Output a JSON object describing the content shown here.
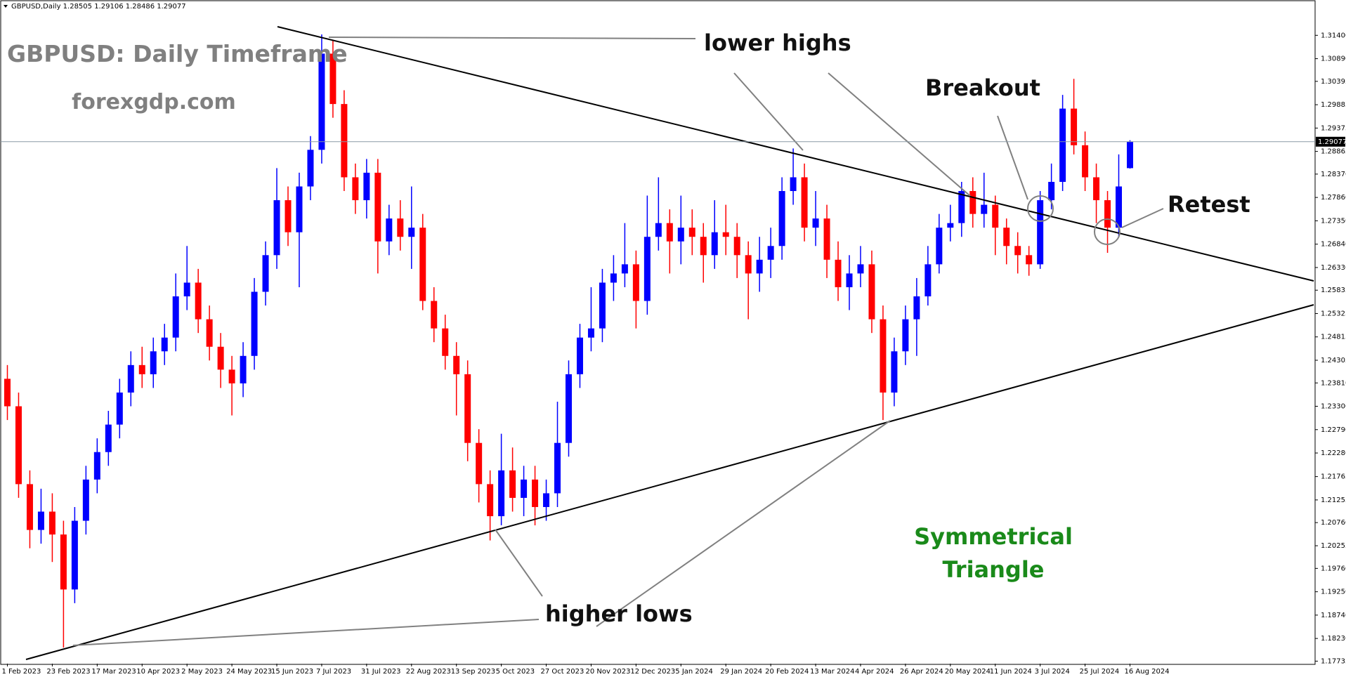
{
  "chart_data": {
    "type": "candlestick",
    "header": "GBPUSD,Daily  1.28505 1.29106 1.28486 1.29077",
    "title": "GBPUSD: Daily Timeframe",
    "subtitle": "forexgdp.com",
    "annotations": [
      "lower highs",
      "Breakout",
      "Retest",
      "higher lows",
      "Symmetrical",
      "Triangle"
    ],
    "up_color": "#0000ff",
    "down_color": "#ff0000",
    "ylim": [
      1.1768,
      1.3211
    ],
    "yticks": [
      {
        "value": 1.314,
        "label": "1.31400"
      },
      {
        "value": 1.3089,
        "label": "1.30890"
      },
      {
        "value": 1.30395,
        "label": "1.30395"
      },
      {
        "value": 1.29885,
        "label": "1.29885"
      },
      {
        "value": 1.29375,
        "label": "1.29375"
      },
      {
        "value": 1.28865,
        "label": "1.28865"
      },
      {
        "value": 1.2837,
        "label": "1.28370"
      },
      {
        "value": 1.2786,
        "label": "1.27860"
      },
      {
        "value": 1.2735,
        "label": "1.27350"
      },
      {
        "value": 1.2684,
        "label": "1.26840"
      },
      {
        "value": 1.2633,
        "label": "1.26330"
      },
      {
        "value": 1.25835,
        "label": "1.25835"
      },
      {
        "value": 1.25325,
        "label": "1.25325"
      },
      {
        "value": 1.24815,
        "label": "1.24815"
      },
      {
        "value": 1.24305,
        "label": "1.24305"
      },
      {
        "value": 1.2381,
        "label": "1.23810"
      },
      {
        "value": 1.233,
        "label": "1.23300"
      },
      {
        "value": 1.2279,
        "label": "1.22790"
      },
      {
        "value": 1.2228,
        "label": "1.22280"
      },
      {
        "value": 1.21765,
        "label": "1.21765"
      },
      {
        "value": 1.21255,
        "label": "1.21255"
      },
      {
        "value": 1.2076,
        "label": "1.20760"
      },
      {
        "value": 1.20255,
        "label": "1.20255"
      },
      {
        "value": 1.1976,
        "label": "1.19760"
      },
      {
        "value": 1.1925,
        "label": "1.19250"
      },
      {
        "value": 1.1874,
        "label": "1.18740"
      },
      {
        "value": 1.1823,
        "label": "1.18230"
      },
      {
        "value": 1.17735,
        "label": "1.17735"
      }
    ],
    "last_price": {
      "value": 1.29077,
      "label": "1.29077"
    },
    "categories": [
      "1 Feb 2023",
      null,
      null,
      null,
      "23 Feb 2023",
      null,
      null,
      null,
      "17 Mar 2023",
      null,
      null,
      null,
      "10 Apr 2023",
      null,
      null,
      null,
      "2 May 2023",
      null,
      null,
      null,
      "24 May 2023",
      null,
      null,
      null,
      "15 Jun 2023",
      null,
      null,
      null,
      "7 Jul 2023",
      null,
      null,
      null,
      "31 Jul 2023",
      null,
      null,
      null,
      "22 Aug 2023",
      null,
      null,
      null,
      "13 Sep 2023",
      null,
      null,
      null,
      "5 Oct 2023",
      null,
      null,
      null,
      "27 Oct 2023",
      null,
      null,
      null,
      "20 Nov 2023",
      null,
      null,
      null,
      "12 Dec 2023",
      null,
      null,
      null,
      "5 Jan 2024",
      null,
      null,
      null,
      "29 Jan 2024",
      null,
      null,
      null,
      "20 Feb 2024",
      null,
      null,
      null,
      "13 Mar 2024",
      null,
      null,
      null,
      "4 Apr 2024",
      null,
      null,
      null,
      "26 Apr 2024",
      null,
      null,
      null,
      "20 May 2024",
      null,
      null,
      null,
      "11 Jun 2024",
      null,
      null,
      null,
      "3 Jul 2024",
      null,
      null,
      null,
      "25 Jul 2024",
      null,
      null,
      null,
      "16 Aug 2024"
    ],
    "open": [
      1.239,
      1.233,
      1.216,
      1.206,
      1.21,
      1.205,
      1.193,
      1.208,
      1.217,
      1.223,
      1.229,
      1.236,
      1.242,
      1.24,
      1.245,
      1.248,
      1.257,
      1.26,
      1.252,
      1.246,
      1.241,
      1.238,
      1.244,
      1.258,
      1.266,
      1.278,
      1.271,
      1.281,
      1.289,
      1.31,
      1.299,
      1.283,
      1.278,
      1.284,
      1.269,
      1.274,
      1.27,
      1.272,
      1.256,
      1.25,
      1.244,
      1.24,
      1.225,
      1.216,
      1.209,
      1.219,
      1.213,
      1.217,
      1.211,
      1.214,
      1.225,
      1.24,
      1.248,
      1.25,
      1.26,
      1.262,
      1.264,
      1.256,
      1.27,
      1.273,
      1.269,
      1.272,
      1.27,
      1.266,
      1.271,
      1.27,
      1.266,
      1.262,
      1.265,
      1.268,
      1.28,
      1.283,
      1.272,
      1.274,
      1.265,
      1.259,
      1.262,
      1.264,
      1.252,
      1.236,
      1.245,
      1.252,
      1.257,
      1.264,
      1.272,
      1.273,
      1.28,
      1.275,
      1.277,
      1.272,
      1.268,
      1.266,
      1.264,
      1.278,
      1.282,
      1.298,
      1.29,
      1.283,
      1.278,
      1.272,
      1.285
    ],
    "high": [
      1.242,
      1.236,
      1.219,
      1.215,
      1.214,
      1.208,
      1.211,
      1.22,
      1.226,
      1.232,
      1.239,
      1.245,
      1.246,
      1.248,
      1.251,
      1.262,
      1.268,
      1.263,
      1.255,
      1.249,
      1.244,
      1.247,
      1.261,
      1.269,
      1.285,
      1.281,
      1.284,
      1.292,
      1.3142,
      1.313,
      1.302,
      1.286,
      1.287,
      1.287,
      1.277,
      1.278,
      1.281,
      1.275,
      1.259,
      1.253,
      1.247,
      1.243,
      1.228,
      1.219,
      1.227,
      1.224,
      1.22,
      1.22,
      1.217,
      1.234,
      1.243,
      1.251,
      1.259,
      1.263,
      1.266,
      1.273,
      1.267,
      1.279,
      1.283,
      1.276,
      1.279,
      1.276,
      1.273,
      1.278,
      1.277,
      1.273,
      1.269,
      1.27,
      1.272,
      1.283,
      1.2893,
      1.286,
      1.28,
      1.277,
      1.269,
      1.266,
      1.268,
      1.267,
      1.255,
      1.248,
      1.255,
      1.261,
      1.268,
      1.275,
      1.277,
      1.282,
      1.283,
      1.284,
      1.279,
      1.274,
      1.271,
      1.268,
      1.28,
      1.286,
      1.301,
      1.3045,
      1.293,
      1.286,
      1.28,
      1.288,
      1.2911
    ],
    "low": [
      1.23,
      1.213,
      1.202,
      1.203,
      1.199,
      1.1803,
      1.19,
      1.205,
      1.214,
      1.22,
      1.226,
      1.233,
      1.237,
      1.237,
      1.242,
      1.245,
      1.254,
      1.249,
      1.243,
      1.237,
      1.231,
      1.235,
      1.241,
      1.255,
      1.263,
      1.268,
      1.259,
      1.278,
      1.286,
      1.296,
      1.28,
      1.275,
      1.274,
      1.262,
      1.266,
      1.267,
      1.263,
      1.254,
      1.247,
      1.241,
      1.231,
      1.221,
      1.212,
      1.2037,
      1.207,
      1.21,
      1.209,
      1.207,
      1.208,
      1.211,
      1.222,
      1.237,
      1.245,
      1.247,
      1.256,
      1.259,
      1.25,
      1.253,
      1.267,
      1.262,
      1.264,
      1.266,
      1.26,
      1.263,
      1.266,
      1.261,
      1.252,
      1.258,
      1.261,
      1.265,
      1.277,
      1.269,
      1.268,
      1.261,
      1.256,
      1.254,
      1.259,
      1.249,
      1.23,
      1.233,
      1.242,
      1.244,
      1.255,
      1.262,
      1.269,
      1.27,
      1.272,
      1.272,
      1.266,
      1.264,
      1.262,
      1.2615,
      1.263,
      1.276,
      1.28,
      1.288,
      1.28,
      1.273,
      1.2665,
      1.27,
      1.2849
    ],
    "close": [
      1.233,
      1.216,
      1.206,
      1.21,
      1.205,
      1.193,
      1.208,
      1.217,
      1.223,
      1.229,
      1.236,
      1.242,
      1.24,
      1.245,
      1.248,
      1.257,
      1.26,
      1.252,
      1.246,
      1.241,
      1.238,
      1.244,
      1.258,
      1.266,
      1.278,
      1.271,
      1.281,
      1.289,
      1.31,
      1.299,
      1.283,
      1.278,
      1.284,
      1.269,
      1.274,
      1.27,
      1.272,
      1.256,
      1.25,
      1.244,
      1.24,
      1.225,
      1.216,
      1.209,
      1.219,
      1.213,
      1.217,
      1.211,
      1.214,
      1.225,
      1.24,
      1.248,
      1.25,
      1.26,
      1.262,
      1.264,
      1.256,
      1.27,
      1.273,
      1.269,
      1.272,
      1.27,
      1.266,
      1.271,
      1.27,
      1.266,
      1.262,
      1.265,
      1.268,
      1.28,
      1.283,
      1.272,
      1.274,
      1.265,
      1.259,
      1.262,
      1.264,
      1.252,
      1.236,
      1.245,
      1.252,
      1.257,
      1.264,
      1.272,
      1.273,
      1.28,
      1.275,
      1.277,
      1.272,
      1.268,
      1.266,
      1.264,
      1.278,
      1.282,
      1.298,
      1.29,
      1.283,
      1.278,
      1.272,
      1.281,
      1.2908
    ]
  }
}
